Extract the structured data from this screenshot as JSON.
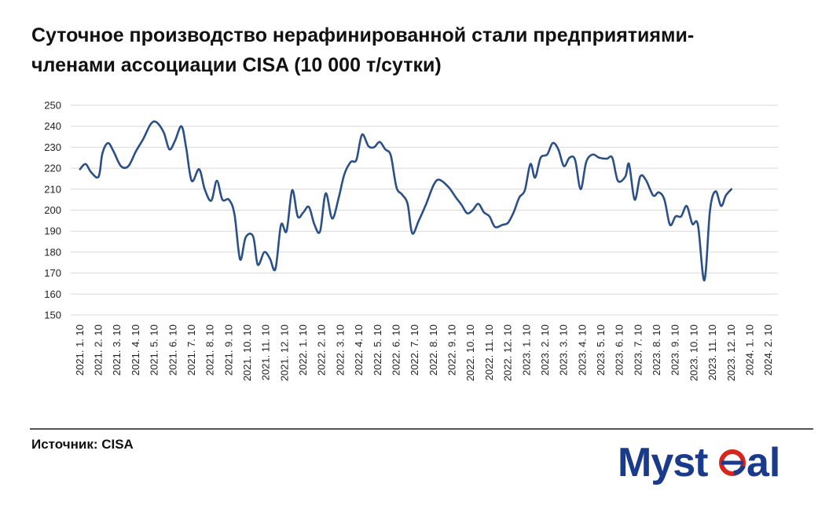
{
  "title": "Суточное производство нерафинированной стали предприятиями-членами ассоциации CISA (10 000 т/сутки)",
  "source_text": "Источник: CISA",
  "logo": {
    "text": "Mysteel",
    "colors": {
      "blue": "#1a3a8c",
      "red": "#d9261c"
    }
  },
  "chart_data": {
    "type": "line",
    "ylim": [
      150,
      250
    ],
    "yticks": [
      150,
      160,
      170,
      180,
      190,
      200,
      210,
      220,
      230,
      240,
      250
    ],
    "grid": true,
    "line_color": "#2b4f87",
    "x_labels": [
      "2021. 1. 10",
      "2021. 2. 10",
      "2021. 3. 10",
      "2021. 4. 10",
      "2021. 5. 10",
      "2021. 6. 10",
      "2021. 7. 10",
      "2021. 8. 10",
      "2021. 9. 10",
      "2021. 10. 10",
      "2021. 11. 10",
      "2021. 12. 10",
      "2022. 1. 10",
      "2022. 2. 10",
      "2022. 3. 10",
      "2022. 4. 10",
      "2022. 5. 10",
      "2022. 6. 10",
      "2022. 7. 10",
      "2022. 8. 10",
      "2022. 9. 10",
      "2022. 10. 10",
      "2022. 11. 10",
      "2022. 12. 10",
      "2023. 1. 10",
      "2023. 2. 10",
      "2023. 3. 10",
      "2023. 4. 10",
      "2023. 5. 10",
      "2023. 6. 10",
      "2023. 7. 10",
      "2023. 8. 10",
      "2023. 9. 10",
      "2023. 10. 10",
      "2023. 11. 10",
      "2023. 12. 10",
      "2024. 1. 10",
      "2024. 2. 10"
    ],
    "series": [
      {
        "values": [
          [
            0,
            219.5
          ],
          [
            0.3,
            222
          ],
          [
            0.6,
            218
          ],
          [
            1.0,
            216
          ],
          [
            1.2,
            227
          ],
          [
            1.5,
            232
          ],
          [
            1.8,
            228
          ],
          [
            2.2,
            221
          ],
          [
            2.6,
            221
          ],
          [
            3.0,
            228
          ],
          [
            3.4,
            234
          ],
          [
            3.8,
            241
          ],
          [
            4.1,
            242
          ],
          [
            4.5,
            237
          ],
          [
            4.8,
            229
          ],
          [
            5.1,
            233
          ],
          [
            5.45,
            240
          ],
          [
            5.7,
            230
          ],
          [
            6.0,
            214
          ],
          [
            6.4,
            219.5
          ],
          [
            6.7,
            210
          ],
          [
            7.05,
            204.5
          ],
          [
            7.35,
            214
          ],
          [
            7.65,
            205
          ],
          [
            8.0,
            205
          ],
          [
            8.3,
            198
          ],
          [
            8.6,
            176.5
          ],
          [
            8.9,
            187
          ],
          [
            9.3,
            187.5
          ],
          [
            9.55,
            174
          ],
          [
            9.9,
            180
          ],
          [
            10.2,
            177
          ],
          [
            10.5,
            172
          ],
          [
            10.8,
            193
          ],
          [
            11.1,
            190
          ],
          [
            11.4,
            209.5
          ],
          [
            11.7,
            197
          ],
          [
            12.0,
            199
          ],
          [
            12.3,
            201.5
          ],
          [
            12.6,
            193
          ],
          [
            12.9,
            190
          ],
          [
            13.2,
            208
          ],
          [
            13.55,
            196
          ],
          [
            13.9,
            206
          ],
          [
            14.2,
            217
          ],
          [
            14.55,
            223
          ],
          [
            14.85,
            224
          ],
          [
            15.15,
            236
          ],
          [
            15.5,
            230.5
          ],
          [
            15.8,
            230
          ],
          [
            16.1,
            232.5
          ],
          [
            16.4,
            229
          ],
          [
            16.7,
            226
          ],
          [
            17.0,
            211
          ],
          [
            17.3,
            207.5
          ],
          [
            17.6,
            203
          ],
          [
            17.85,
            189
          ],
          [
            18.2,
            195
          ],
          [
            18.6,
            203
          ],
          [
            19.0,
            212
          ],
          [
            19.3,
            214.5
          ],
          [
            19.8,
            211
          ],
          [
            20.2,
            206
          ],
          [
            20.5,
            202.5
          ],
          [
            20.8,
            198.5
          ],
          [
            21.1,
            200
          ],
          [
            21.4,
            203
          ],
          [
            21.7,
            199
          ],
          [
            22.0,
            197
          ],
          [
            22.3,
            192
          ],
          [
            22.7,
            193
          ],
          [
            23.0,
            194
          ],
          [
            23.3,
            199
          ],
          [
            23.6,
            206
          ],
          [
            23.9,
            209.5
          ],
          [
            24.2,
            222
          ],
          [
            24.45,
            215.5
          ],
          [
            24.75,
            225
          ],
          [
            25.1,
            226.5
          ],
          [
            25.4,
            232
          ],
          [
            25.7,
            229
          ],
          [
            26.0,
            221
          ],
          [
            26.3,
            225
          ],
          [
            26.6,
            224
          ],
          [
            26.9,
            210
          ],
          [
            27.2,
            223
          ],
          [
            27.55,
            226.5
          ],
          [
            27.9,
            225
          ],
          [
            28.3,
            224.5
          ],
          [
            28.6,
            225
          ],
          [
            28.9,
            214
          ],
          [
            29.3,
            216
          ],
          [
            29.5,
            222
          ],
          [
            29.8,
            205
          ],
          [
            30.1,
            216
          ],
          [
            30.4,
            214.5
          ],
          [
            30.8,
            207
          ],
          [
            31.1,
            208.5
          ],
          [
            31.4,
            205
          ],
          [
            31.7,
            193
          ],
          [
            32.0,
            197
          ],
          [
            32.3,
            197
          ],
          [
            32.6,
            202
          ],
          [
            32.9,
            193.5
          ],
          [
            33.2,
            193
          ],
          [
            33.55,
            166.5
          ],
          [
            33.85,
            200
          ],
          [
            34.15,
            209
          ],
          [
            34.45,
            202
          ],
          [
            34.7,
            207
          ],
          [
            35.0,
            210
          ]
        ]
      }
    ]
  }
}
